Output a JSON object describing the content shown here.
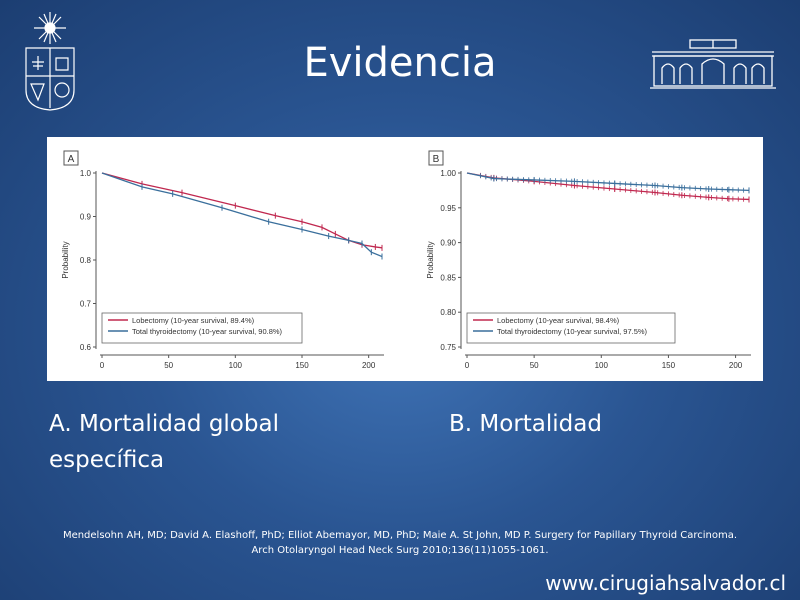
{
  "slide": {
    "title": "Evidencia",
    "caption_a": "A. Mortalidad global",
    "caption_a2": "específica",
    "caption_b": "B. Mortalidad",
    "reference_line1": "Mendelsohn AH, MD; David A. Elashoff, PhD; Elliot Abemayor, MD, PhD; Maie A. St John, MD P. Surgery for Papillary Thyroid Carcinoma.",
    "reference_line2": "Arch Otolaryngol Head Neck Surg 2010;136(11)1055-1061.",
    "website": "www.cirugiahsalvador.cl",
    "logos": [
      "university-seal-icon",
      "hospital-building-icon"
    ]
  },
  "colors": {
    "lobectomy": "#c0284f",
    "total_thyroidectomy": "#3a6f9c"
  },
  "chart_data": [
    {
      "type": "line",
      "panel_label": "A",
      "ylabel": "Probability",
      "xlabel": "",
      "xlim": [
        0,
        210
      ],
      "ylim": [
        0.6,
        1.0
      ],
      "xticks": [
        0,
        50,
        100,
        150,
        200
      ],
      "yticks": [
        "0.6",
        "0.7",
        "0.8",
        "0.9",
        "1.0"
      ],
      "legend_position": "bottom-left",
      "series": [
        {
          "name": "Lobectomy (10-year survival, 89.4%)",
          "color_key": "lobectomy",
          "x": [
            0,
            30,
            60,
            100,
            130,
            150,
            165,
            175,
            185,
            195,
            205,
            210
          ],
          "y": [
            1.0,
            0.975,
            0.955,
            0.925,
            0.902,
            0.888,
            0.875,
            0.86,
            0.845,
            0.835,
            0.83,
            0.828
          ]
        },
        {
          "name": "Total thyroidectomy (10-year survival, 90.8%)",
          "color_key": "total_thyroidectomy",
          "x": [
            0,
            30,
            53,
            90,
            125,
            150,
            170,
            185,
            195,
            202,
            210
          ],
          "y": [
            1.0,
            0.968,
            0.952,
            0.92,
            0.888,
            0.87,
            0.855,
            0.845,
            0.838,
            0.818,
            0.808
          ]
        }
      ]
    },
    {
      "type": "line",
      "panel_label": "B",
      "ylabel": "Probability",
      "xlabel": "",
      "xlim": [
        0,
        210
      ],
      "ylim": [
        0.75,
        1.0
      ],
      "xticks": [
        0,
        50,
        100,
        150,
        200
      ],
      "yticks": [
        "0.75",
        "0.80",
        "0.85",
        "0.90",
        "0.95",
        "1.00"
      ],
      "legend_position": "bottom-left",
      "series": [
        {
          "name": "Lobectomy (10-year survival, 98.4%)",
          "color_key": "lobectomy",
          "x": [
            0,
            20,
            50,
            80,
            110,
            140,
            160,
            180,
            195,
            210
          ],
          "y": [
            1.0,
            0.993,
            0.988,
            0.982,
            0.977,
            0.972,
            0.968,
            0.965,
            0.963,
            0.962
          ]
        },
        {
          "name": "Total thyroidectomy (10-year survival, 97.5%)",
          "color_key": "total_thyroidectomy",
          "x": [
            0,
            20,
            50,
            80,
            110,
            140,
            160,
            180,
            195,
            210
          ],
          "y": [
            1.0,
            0.992,
            0.99,
            0.988,
            0.985,
            0.982,
            0.979,
            0.977,
            0.976,
            0.975
          ]
        }
      ]
    }
  ]
}
